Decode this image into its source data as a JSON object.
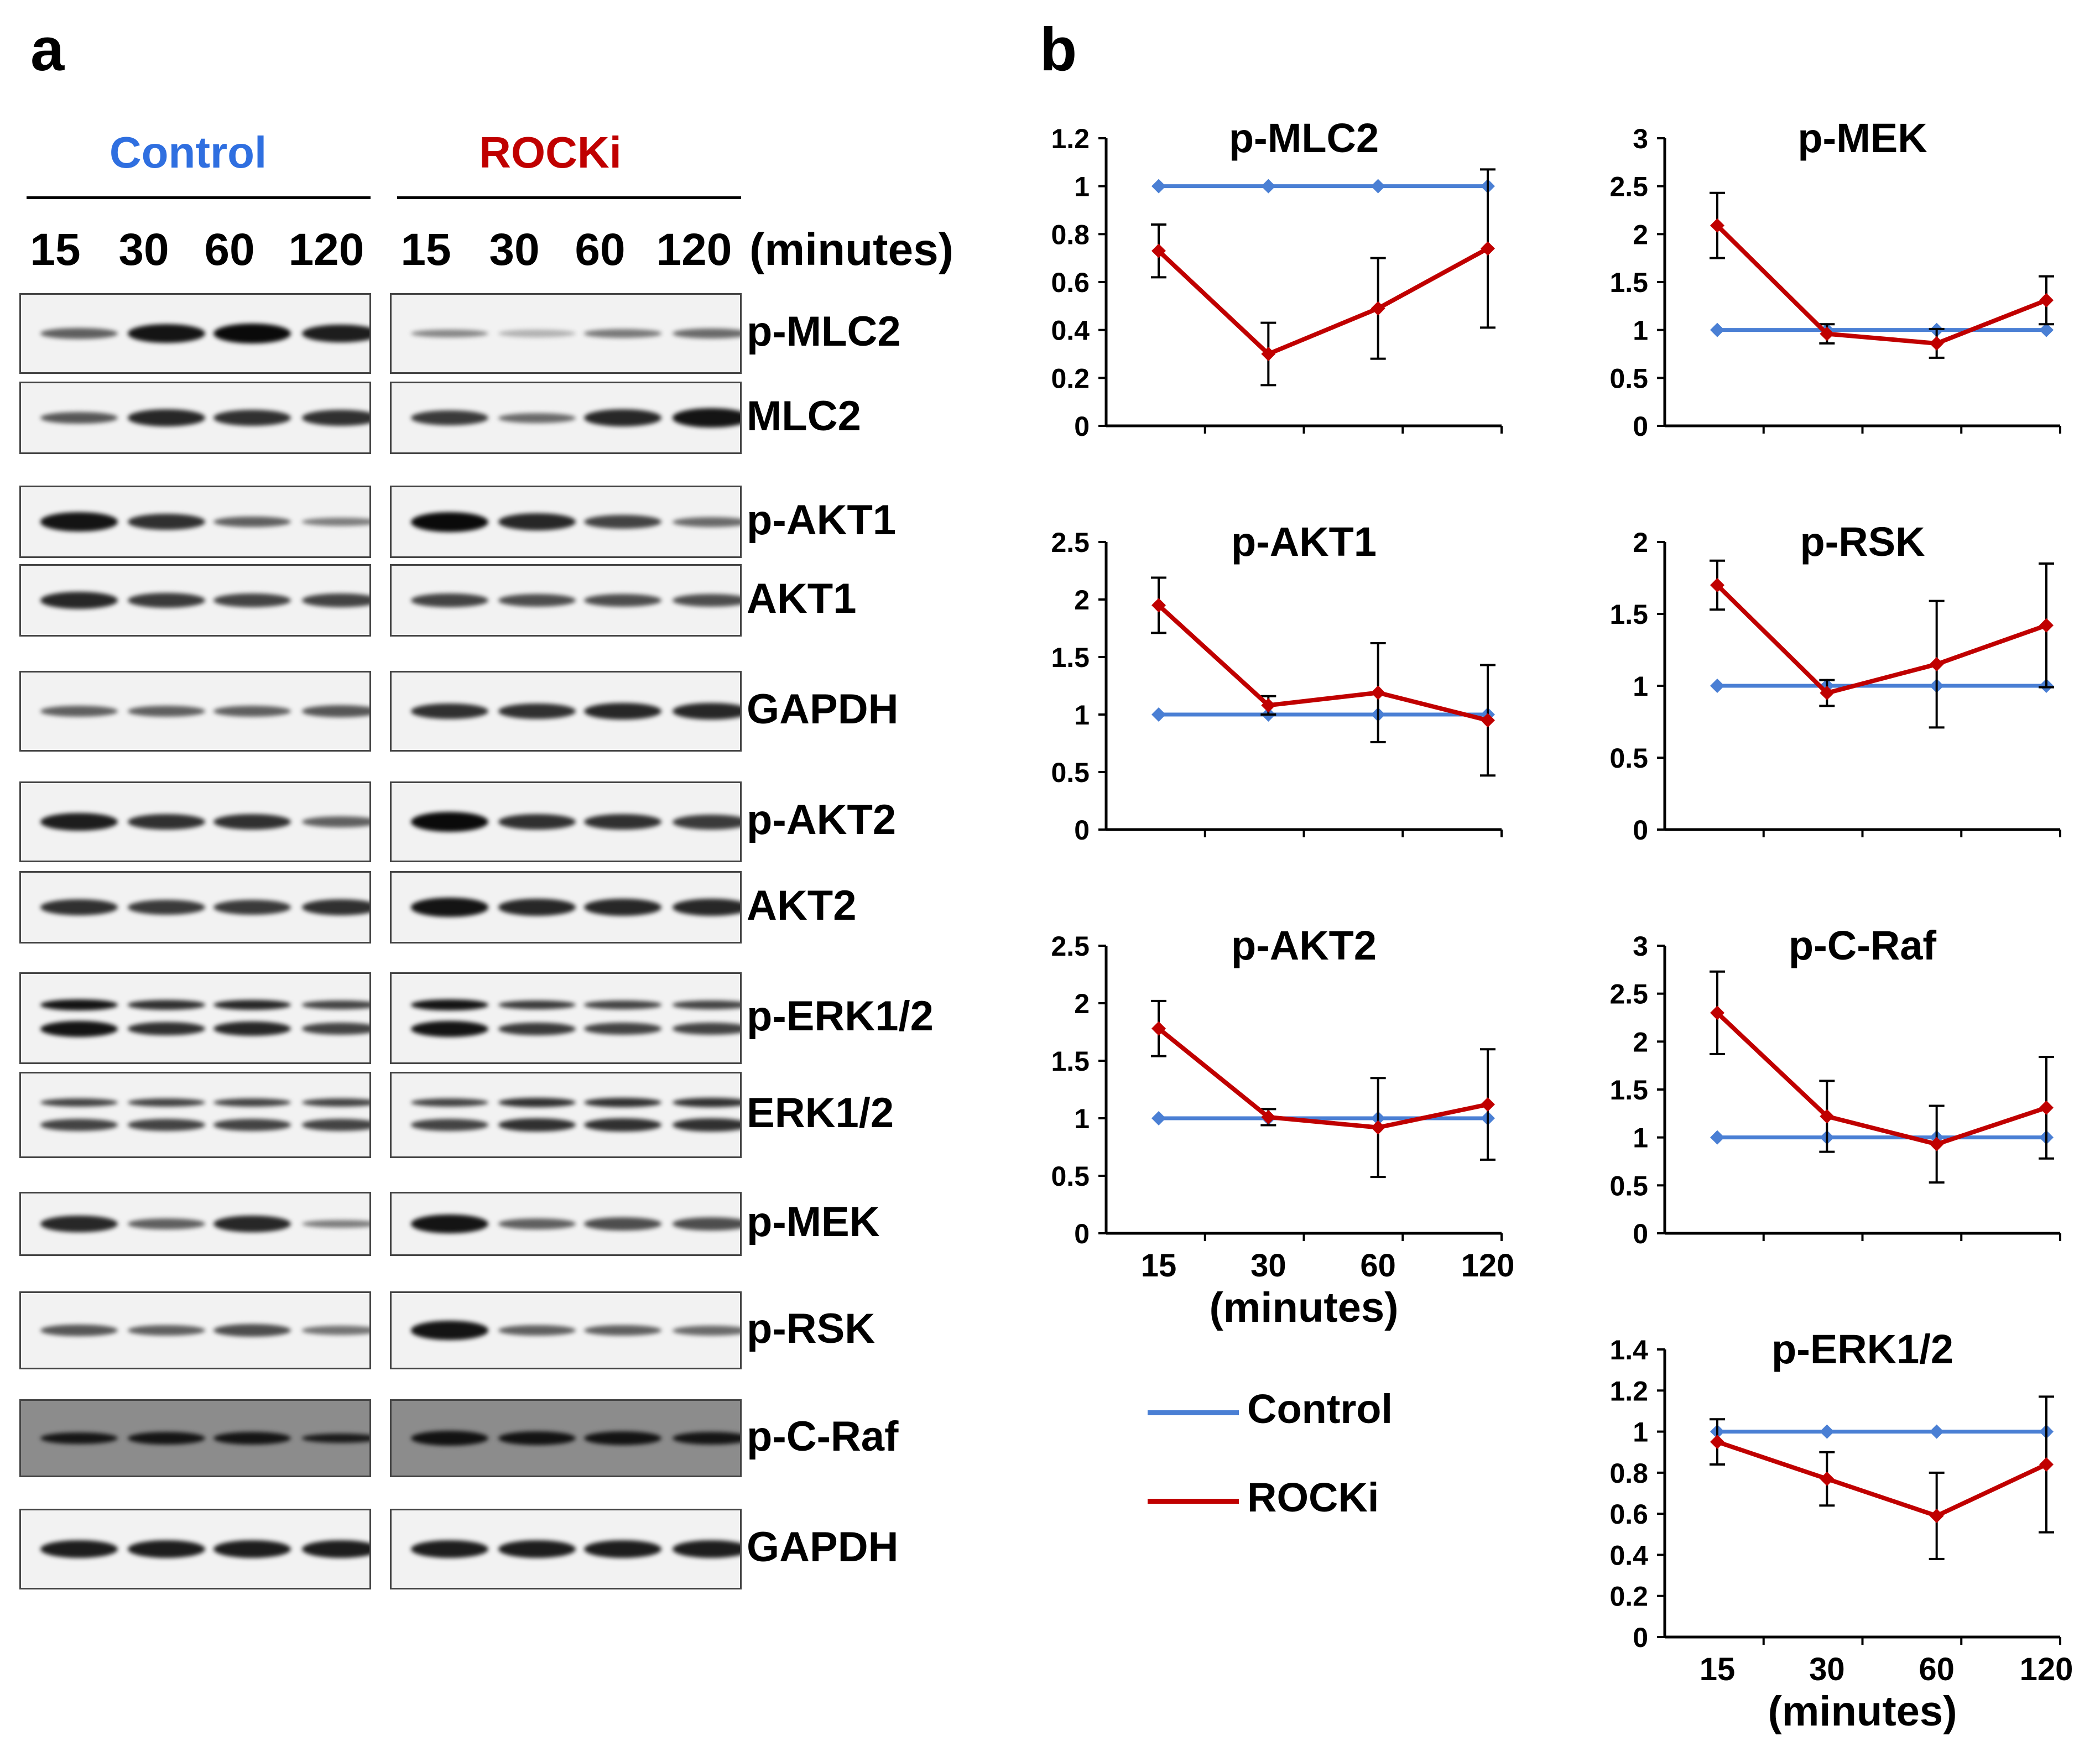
{
  "panel_a": {
    "letter": "a",
    "groups": {
      "control": "Control",
      "rocki": "ROCKi"
    },
    "group_colors": {
      "control": "#2f6fe0",
      "rocki": "#c00000"
    },
    "time_points": [
      "15",
      "30",
      "60",
      "120"
    ],
    "time_unit": "(minutes)",
    "blots": [
      {
        "label": "p-MLC2",
        "control": [
          0.55,
          0.95,
          1.0,
          0.9
        ],
        "rocki": [
          0.35,
          0.12,
          0.42,
          0.5
        ]
      },
      {
        "label": "MLC2",
        "control": [
          0.6,
          0.85,
          0.8,
          0.8
        ],
        "rocki": [
          0.75,
          0.5,
          0.85,
          0.95
        ]
      },
      {
        "label": "p-AKT1",
        "control": [
          0.95,
          0.8,
          0.55,
          0.4
        ],
        "rocki": [
          1.0,
          0.85,
          0.7,
          0.5
        ]
      },
      {
        "label": "AKT1",
        "control": [
          0.85,
          0.75,
          0.7,
          0.7
        ],
        "rocki": [
          0.7,
          0.65,
          0.65,
          0.65
        ]
      },
      {
        "label": "GAPDH",
        "control": [
          0.55,
          0.55,
          0.55,
          0.6
        ],
        "rocki": [
          0.8,
          0.8,
          0.85,
          0.85
        ]
      },
      {
        "label": "p-AKT2",
        "control": [
          0.9,
          0.8,
          0.8,
          0.55
        ],
        "rocki": [
          1.0,
          0.8,
          0.8,
          0.75
        ]
      },
      {
        "label": "AKT2",
        "control": [
          0.8,
          0.75,
          0.75,
          0.8
        ],
        "rocki": [
          0.95,
          0.85,
          0.85,
          0.85
        ]
      },
      {
        "label": "p-ERK1/2",
        "control": [
          0.95,
          0.8,
          0.85,
          0.7
        ],
        "rocki": [
          0.95,
          0.75,
          0.7,
          0.7
        ]
      },
      {
        "label": "ERK1/2",
        "control": [
          0.7,
          0.7,
          0.7,
          0.7
        ],
        "rocki": [
          0.7,
          0.8,
          0.8,
          0.8
        ]
      },
      {
        "label": "p-MEK",
        "control": [
          0.85,
          0.55,
          0.85,
          0.4
        ],
        "rocki": [
          0.95,
          0.55,
          0.65,
          0.65
        ]
      },
      {
        "label": "p-RSK",
        "control": [
          0.6,
          0.55,
          0.65,
          0.45
        ],
        "rocki": [
          0.95,
          0.55,
          0.55,
          0.5
        ]
      },
      {
        "label": "p-C-Raf",
        "control": [
          0.6,
          0.65,
          0.65,
          0.45
        ],
        "rocki": [
          0.75,
          0.7,
          0.7,
          0.65
        ]
      },
      {
        "label": "GAPDH",
        "control": [
          0.9,
          0.9,
          0.9,
          0.9
        ],
        "rocki": [
          0.9,
          0.9,
          0.9,
          0.9
        ]
      }
    ]
  },
  "panel_b": {
    "letter": "b",
    "legend": {
      "control": "Control",
      "rocki": "ROCKi"
    },
    "colors": {
      "control": "#4a7fd4",
      "rocki": "#c00000",
      "error": "#000000"
    }
  },
  "chart_data": [
    {
      "type": "line",
      "title": "p-MLC2",
      "x": [
        "15",
        "30",
        "60",
        "120"
      ],
      "xlabel": "",
      "ylim": [
        0,
        1.2
      ],
      "yticks": [
        "0",
        "0.2",
        "0.4",
        "0.6",
        "0.8",
        "1",
        "1.2"
      ],
      "series": [
        {
          "name": "Control",
          "values": [
            1,
            1,
            1,
            1
          ]
        },
        {
          "name": "ROCKi",
          "values": [
            0.73,
            0.3,
            0.49,
            0.74
          ],
          "errors": [
            0.11,
            0.13,
            0.21,
            0.33
          ]
        }
      ]
    },
    {
      "type": "line",
      "title": "p-MEK",
      "x": [
        "15",
        "30",
        "60",
        "120"
      ],
      "xlabel": "",
      "ylim": [
        0,
        3
      ],
      "yticks": [
        "0",
        "0.5",
        "1",
        "1.5",
        "2",
        "2.5",
        "3"
      ],
      "series": [
        {
          "name": "Control",
          "values": [
            1,
            1,
            1,
            1
          ]
        },
        {
          "name": "ROCKi",
          "values": [
            2.09,
            0.96,
            0.86,
            1.31
          ],
          "errors": [
            0.34,
            0.1,
            0.15,
            0.25
          ]
        }
      ]
    },
    {
      "type": "line",
      "title": "p-AKT1",
      "x": [
        "15",
        "30",
        "60",
        "120"
      ],
      "xlabel": "",
      "ylim": [
        0,
        2.5
      ],
      "yticks": [
        "0",
        "0.5",
        "1",
        "1.5",
        "2",
        "2.5"
      ],
      "series": [
        {
          "name": "Control",
          "values": [
            1,
            1,
            1,
            1
          ]
        },
        {
          "name": "ROCKi",
          "values": [
            1.95,
            1.08,
            1.19,
            0.95
          ],
          "errors": [
            0.24,
            0.08,
            0.43,
            0.48
          ]
        }
      ]
    },
    {
      "type": "line",
      "title": "p-RSK",
      "x": [
        "15",
        "30",
        "60",
        "120"
      ],
      "xlabel": "",
      "ylim": [
        0,
        2
      ],
      "yticks": [
        "0",
        "0.5",
        "1",
        "1.5",
        "2"
      ],
      "series": [
        {
          "name": "Control",
          "values": [
            1,
            1,
            1,
            1
          ]
        },
        {
          "name": "ROCKi",
          "values": [
            1.7,
            0.95,
            1.15,
            1.42
          ],
          "errors": [
            0.17,
            0.09,
            0.44,
            0.43
          ]
        }
      ]
    },
    {
      "type": "line",
      "title": "p-AKT2",
      "x": [
        "15",
        "30",
        "60",
        "120"
      ],
      "xlabel": "(minutes)",
      "ylim": [
        0,
        2.5
      ],
      "yticks": [
        "0",
        "0.5",
        "1",
        "1.5",
        "2",
        "2.5"
      ],
      "series": [
        {
          "name": "Control",
          "values": [
            1,
            1,
            1,
            1
          ]
        },
        {
          "name": "ROCKi",
          "values": [
            1.78,
            1.01,
            0.92,
            1.12
          ],
          "errors": [
            0.24,
            0.07,
            0.43,
            0.48
          ]
        }
      ]
    },
    {
      "type": "line",
      "title": "p-C-Raf",
      "x": [
        "15",
        "30",
        "60",
        "120"
      ],
      "xlabel": "",
      "ylim": [
        0,
        3
      ],
      "yticks": [
        "0",
        "0.5",
        "1",
        "1.5",
        "2",
        "2.5",
        "3"
      ],
      "series": [
        {
          "name": "Control",
          "values": [
            1,
            1,
            1,
            1
          ]
        },
        {
          "name": "ROCKi",
          "values": [
            2.3,
            1.22,
            0.93,
            1.31
          ],
          "errors": [
            0.43,
            0.37,
            0.4,
            0.53
          ]
        }
      ]
    },
    {
      "type": "line",
      "title": "p-ERK1/2",
      "x": [
        "15",
        "30",
        "60",
        "120"
      ],
      "xlabel": "(minutes)",
      "ylim": [
        0,
        1.4
      ],
      "yticks": [
        "0",
        "0.2",
        "0.4",
        "0.6",
        "0.8",
        "1",
        "1.2",
        "1.4"
      ],
      "series": [
        {
          "name": "Control",
          "values": [
            1,
            1,
            1,
            1
          ]
        },
        {
          "name": "ROCKi",
          "values": [
            0.95,
            0.77,
            0.59,
            0.84
          ],
          "errors": [
            0.11,
            0.13,
            0.21,
            0.33
          ]
        }
      ]
    }
  ]
}
